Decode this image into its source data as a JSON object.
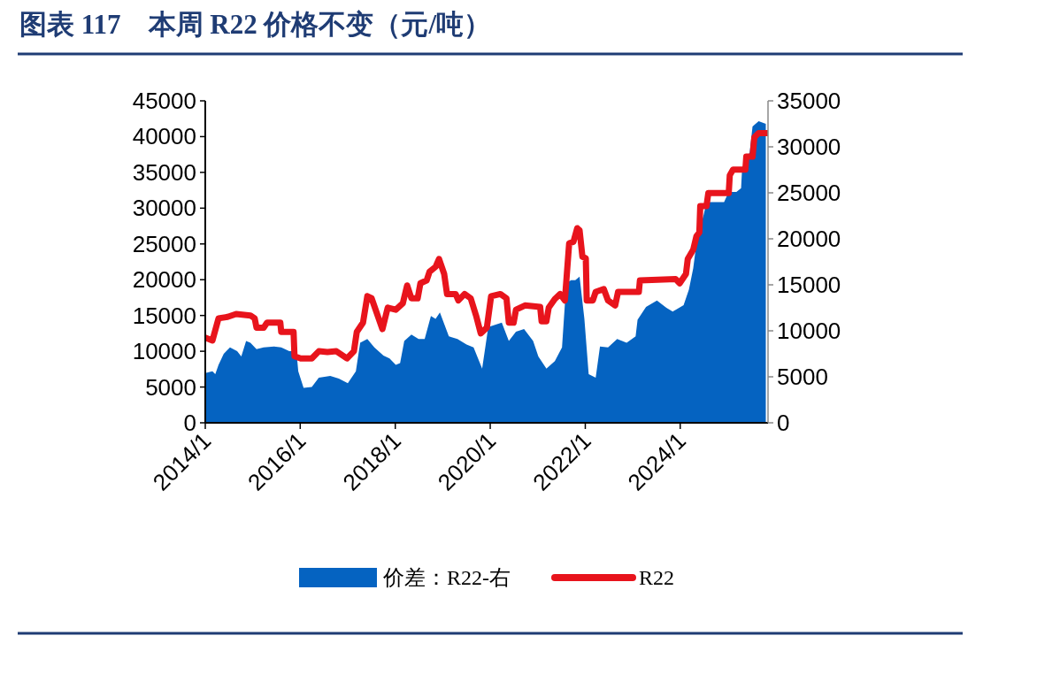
{
  "chart_data": {
    "type": "line",
    "title": "图表 117　本周 R22 价格不变（元/吨）",
    "xlim": [
      "2014-01-01",
      "2025-11-06"
    ],
    "xticks": [
      {
        "value": "2014-01-01",
        "label": "2014/1"
      },
      {
        "value": "2016-01-01",
        "label": "2016/1"
      },
      {
        "value": "2018-01-01",
        "label": "2018/1"
      },
      {
        "value": "2020-01-01",
        "label": "2020/1"
      },
      {
        "value": "2022-01-01",
        "label": "2022/1"
      },
      {
        "value": "2024-01-01",
        "label": "2024/1"
      }
    ],
    "ylim": [
      0,
      45000
    ],
    "yticks": [
      0,
      5000,
      10000,
      15000,
      20000,
      25000,
      30000,
      35000,
      40000,
      45000
    ],
    "y2lim": [
      0,
      35000
    ],
    "y2ticks": [
      0,
      5000,
      10000,
      15000,
      20000,
      25000,
      30000,
      35000
    ],
    "grid": false,
    "legend": "bottom",
    "series": [
      {
        "name": "价差：R22-右",
        "type": "area",
        "axis": "y2",
        "color": "#0563c1",
        "x": [
          "2014-01-01",
          "2014-02-25",
          "2014-03-19",
          "2014-04-13",
          "2014-05-23",
          "2014-07-10",
          "2014-09-03",
          "2014-10-05",
          "2014-11-11",
          "2014-12-14",
          "2015-01-30",
          "2015-03-26",
          "2015-06-14",
          "2015-08-08",
          "2015-10-09",
          "2015-12-03",
          "2015-12-17",
          "2016-01-27",
          "2016-03-30",
          "2016-05-23",
          "2016-08-19",
          "2016-10-24",
          "2017-01-01",
          "2017-03-04",
          "2017-04-06",
          "2017-05-31",
          "2017-07-24",
          "2017-10-02",
          "2017-11-18",
          "2018-01-05",
          "2018-02-07",
          "2018-03-11",
          "2018-05-05",
          "2018-06-29",
          "2018-08-15",
          "2018-10-02",
          "2018-11-07",
          "2018-12-10",
          "2019-02-17",
          "2019-04-24",
          "2019-07-03",
          "2019-08-26",
          "2019-10-31",
          "2019-12-17",
          "2020-03-30",
          "2020-05-23",
          "2020-07-17",
          "2020-09-17",
          "2020-11-26",
          "2021-01-05",
          "2021-03-08",
          "2021-05-12",
          "2021-07-06",
          "2021-08-08",
          "2021-09-14",
          "2021-10-16",
          "2021-11-18",
          "2021-12-25",
          "2022-01-27",
          "2022-03-22",
          "2022-04-24",
          "2022-06-25",
          "2022-09-03",
          "2022-11-15",
          "2023-01-23",
          "2023-02-07",
          "2023-04-13",
          "2023-07-06",
          "2023-09-17",
          "2023-11-04",
          "2024-01-27",
          "2024-03-08",
          "2024-04-10",
          "2024-05-12",
          "2024-06-29",
          "2024-07-21",
          "2024-12-03",
          "2025-01-08",
          "2025-03-08",
          "2025-04-13",
          "2025-04-21",
          "2025-06-18",
          "2025-07-10",
          "2025-08-26",
          "2025-10-20"
        ],
        "values": [
          5400,
          5600,
          5300,
          6300,
          7500,
          8200,
          7800,
          7200,
          8900,
          8700,
          8000,
          8200,
          8300,
          8200,
          7800,
          7800,
          5600,
          3800,
          3900,
          4900,
          5100,
          4800,
          4300,
          5600,
          8700,
          9100,
          8200,
          7300,
          7000,
          6300,
          6500,
          8900,
          9600,
          9100,
          9100,
          11600,
          11300,
          12000,
          9400,
          9100,
          8500,
          8200,
          5900,
          10400,
          10900,
          8900,
          9900,
          10200,
          8900,
          7200,
          5900,
          6700,
          8200,
          15200,
          15500,
          15500,
          15900,
          11300,
          5300,
          4900,
          8300,
          8200,
          9100,
          8700,
          9400,
          11200,
          12600,
          13300,
          12500,
          12100,
          12800,
          14500,
          16800,
          20300,
          22600,
          24000,
          24000,
          25100,
          25100,
          25500,
          27700,
          29400,
          32200,
          32800,
          32500
        ]
      },
      {
        "name": "R22",
        "type": "line",
        "color": "#e8141c",
        "x": [
          "2014-01-01",
          "2014-02-25",
          "2014-04-13",
          "2014-06-22",
          "2014-08-26",
          "2014-12-14",
          "2015-01-16",
          "2015-01-30",
          "2015-03-26",
          "2015-04-21",
          "2015-08-01",
          "2015-08-08",
          "2015-11-11",
          "2015-11-18",
          "2016-01-05",
          "2016-03-30",
          "2016-05-23",
          "2016-07-28",
          "2016-10-05",
          "2016-12-25",
          "2017-02-17",
          "2017-03-11",
          "2017-04-28",
          "2017-05-31",
          "2017-07-03",
          "2017-09-24",
          "2017-11-04",
          "2018-01-05",
          "2018-02-28",
          "2018-04-02",
          "2018-05-05",
          "2018-06-22",
          "2018-07-13",
          "2018-08-30",
          "2018-09-21",
          "2018-11-07",
          "2018-12-03",
          "2019-01-12",
          "2019-02-03",
          "2019-04-10",
          "2019-05-01",
          "2019-06-18",
          "2019-08-04",
          "2019-09-14",
          "2019-10-20",
          "2019-12-06",
          "2020-01-08",
          "2020-03-19",
          "2020-05-05",
          "2020-05-23",
          "2020-06-29",
          "2020-07-17",
          "2020-09-24",
          "2021-01-19",
          "2021-01-30",
          "2021-03-08",
          "2021-03-26",
          "2021-05-12",
          "2021-06-22",
          "2021-07-28",
          "2021-08-30",
          "2021-10-02",
          "2021-10-31",
          "2021-11-18",
          "2021-12-10",
          "2022-01-05",
          "2022-01-12",
          "2022-02-28",
          "2022-03-22",
          "2022-05-23",
          "2022-06-25",
          "2022-08-19",
          "2022-09-10",
          "2023-02-17",
          "2023-02-25",
          "2023-11-26",
          "2023-12-28",
          "2024-02-14",
          "2024-02-28",
          "2024-04-10",
          "2024-05-05",
          "2024-05-27",
          "2024-06-03",
          "2024-07-21",
          "2024-08-04",
          "2025-01-08",
          "2025-01-16",
          "2025-02-10",
          "2025-05-16",
          "2025-05-23",
          "2025-07-10",
          "2025-07-24",
          "2025-08-26",
          "2025-10-27"
        ],
        "values": [
          11900,
          11500,
          14600,
          14800,
          15200,
          15000,
          14600,
          13300,
          13300,
          14000,
          14000,
          12700,
          12700,
          9300,
          9000,
          9000,
          10000,
          9900,
          10000,
          9000,
          10000,
          12700,
          14000,
          17700,
          17400,
          13100,
          16100,
          15800,
          16700,
          19200,
          17400,
          17400,
          19500,
          19900,
          21100,
          21800,
          22900,
          20800,
          18000,
          18000,
          17100,
          18000,
          17400,
          15000,
          12500,
          13300,
          17700,
          18000,
          17400,
          14000,
          14000,
          15800,
          16400,
          16200,
          14200,
          14200,
          16100,
          17300,
          18000,
          17100,
          25100,
          25300,
          27200,
          26900,
          23200,
          23000,
          17100,
          17100,
          18300,
          18700,
          17100,
          16400,
          18300,
          18300,
          19900,
          20100,
          19500,
          20800,
          22900,
          24200,
          26100,
          26600,
          30300,
          30300,
          32100,
          32100,
          34600,
          35400,
          35400,
          37200,
          37200,
          39900,
          40500,
          40500
        ]
      }
    ]
  }
}
